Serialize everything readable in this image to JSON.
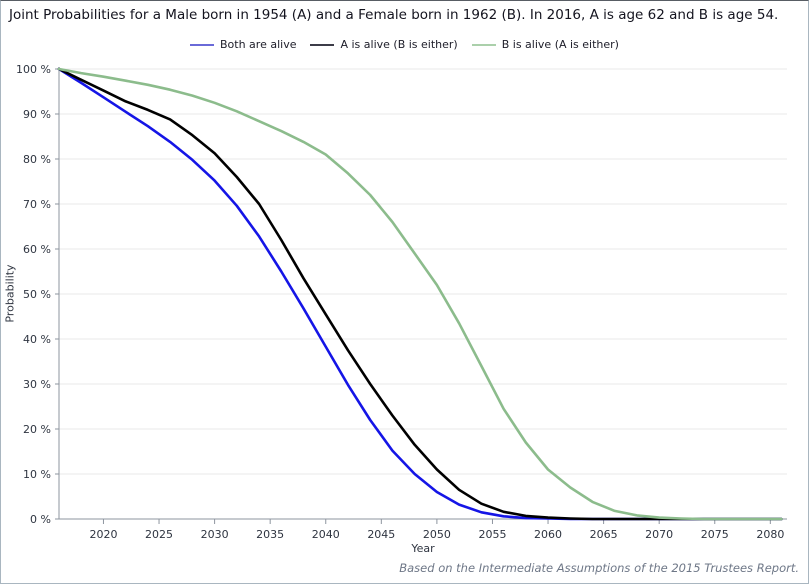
{
  "title": "Joint Probabilities for a Male born in 1954 (A) and a Female born in 1962 (B). In 2016, A is age 62 and B is age 54.",
  "footer": "Based on the Intermediate Assumptions of the 2015 Trustees Report.",
  "colors": {
    "both_alive_line": "#1515e6",
    "a_alive_line": "#000000",
    "b_alive_line": "#8cbc8c",
    "legend_both": "#6a6ad8",
    "legend_a": "#3c3c48",
    "legend_b": "#abd0ab",
    "gridline": "#e8e8e8",
    "axis": "#8e959f",
    "tick_text": "#2e3440"
  },
  "chart_data": {
    "type": "line",
    "title": "Joint Probabilities for a Male born in 1954 (A) and a Female born in 1962 (B). In 2016, A is age 62 and B is age 54.",
    "xlabel": "Year",
    "ylabel": "Probability",
    "xlim": [
      2016,
      2081.5
    ],
    "ylim": [
      0,
      100
    ],
    "grid": "horizontal",
    "legend_position": "top-center",
    "x": [
      2016,
      2018,
      2020,
      2022,
      2024,
      2026,
      2028,
      2030,
      2032,
      2034,
      2036,
      2038,
      2040,
      2042,
      2044,
      2046,
      2048,
      2050,
      2052,
      2054,
      2056,
      2058,
      2060,
      2062,
      2064,
      2066,
      2068,
      2070,
      2072,
      2074,
      2076,
      2078,
      2080,
      2081
    ],
    "series": [
      {
        "name": "Both are alive",
        "color": "#1515e6",
        "legend_color": "#6a6ad8",
        "values": [
          100,
          96.9,
          93.7,
          90.5,
          87.3,
          83.8,
          79.8,
          75.2,
          69.6,
          62.8,
          55.0,
          46.8,
          38.3,
          29.8,
          22.0,
          15.2,
          10.0,
          6.0,
          3.2,
          1.5,
          0.6,
          0.2,
          0.1,
          0,
          0,
          0,
          0,
          0,
          0,
          0,
          0,
          0,
          0,
          0
        ]
      },
      {
        "name": "A is alive (B is either)",
        "color": "#000000",
        "legend_color": "#3c3c48",
        "values": [
          100,
          97.6,
          95.2,
          92.8,
          90.9,
          88.8,
          85.3,
          81.3,
          76.0,
          70.0,
          62.0,
          53.5,
          45.5,
          37.5,
          30.0,
          23.0,
          16.5,
          11.0,
          6.5,
          3.4,
          1.6,
          0.7,
          0.3,
          0.1,
          0,
          0,
          0,
          0,
          0,
          0,
          0,
          0,
          0,
          0
        ]
      },
      {
        "name": "B is alive (A is either)",
        "color": "#8cbc8c",
        "legend_color": "#abd0ab",
        "values": [
          100,
          99.1,
          98.3,
          97.4,
          96.5,
          95.4,
          94.1,
          92.5,
          90.6,
          88.4,
          86.2,
          83.8,
          81.0,
          76.8,
          72.0,
          66.0,
          59.0,
          52.0,
          43.5,
          34.0,
          24.5,
          17.0,
          11.0,
          7.0,
          3.8,
          1.8,
          0.8,
          0.3,
          0.1,
          0,
          0,
          0,
          0,
          0
        ]
      }
    ],
    "xticks": [
      2020,
      2025,
      2030,
      2035,
      2040,
      2045,
      2050,
      2055,
      2060,
      2065,
      2070,
      2075,
      2080
    ],
    "ytick_values": [
      0,
      10,
      20,
      30,
      40,
      50,
      60,
      70,
      80,
      90,
      100
    ],
    "ytick_labels": [
      "0 %",
      "10 %",
      "20 %",
      "30 %",
      "40 %",
      "50 %",
      "60 %",
      "70 %",
      "80 %",
      "90 %",
      "100 %"
    ]
  }
}
